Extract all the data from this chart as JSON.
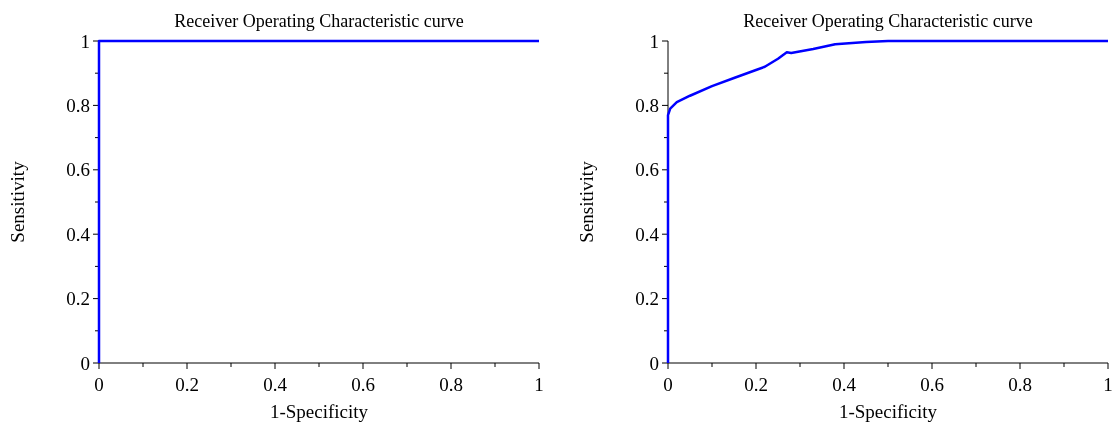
{
  "chart_data": [
    {
      "type": "line",
      "title": "Receiver Operating Characteristic curve",
      "xlabel": "1-Specificity",
      "ylabel": "Sensitivity",
      "series": [
        {
          "color": "#0000ff",
          "x": [
            0,
            0,
            0,
            0.25,
            0.5,
            0.75,
            1
          ],
          "values": [
            0,
            0.5,
            1,
            1,
            1,
            1,
            1
          ]
        }
      ],
      "xlim": [
        0,
        1
      ],
      "ylim": [
        0,
        1
      ],
      "xticks": [
        0,
        {
          "value": 0.1,
          "label": null
        },
        0.2,
        {
          "value": 0.3,
          "label": null
        },
        0.4,
        {
          "value": 0.5,
          "label": null
        },
        0.6,
        {
          "value": 0.7,
          "label": null
        },
        0.8,
        {
          "value": 0.9,
          "label": null
        },
        1
      ],
      "yticks": [
        0,
        {
          "value": 0.1,
          "label": null
        },
        0.2,
        {
          "value": 0.3,
          "label": null
        },
        0.4,
        {
          "value": 0.5,
          "label": null
        },
        0.6,
        {
          "value": 0.7,
          "label": null
        },
        0.8,
        {
          "value": 0.9,
          "label": null
        },
        1
      ],
      "grid": false
    },
    {
      "type": "line",
      "title": "Receiver Operating Characteristic curve",
      "xlabel": "1-Specificity",
      "ylabel": "Sensitivity",
      "series": [
        {
          "color": "#0000ff",
          "x": [
            0,
            0,
            0.005,
            0.02,
            0.05,
            0.1,
            0.15,
            0.2,
            0.22,
            0.25,
            0.27,
            0.28,
            0.33,
            0.38,
            0.45,
            0.5,
            1
          ],
          "values": [
            0,
            0.77,
            0.79,
            0.81,
            0.83,
            0.86,
            0.885,
            0.91,
            0.92,
            0.945,
            0.965,
            0.963,
            0.975,
            0.99,
            0.997,
            1,
            1
          ]
        }
      ],
      "xlim": [
        0,
        1
      ],
      "ylim": [
        0,
        1
      ],
      "xticks": [
        0,
        {
          "value": 0.1,
          "label": null
        },
        0.2,
        {
          "value": 0.3,
          "label": null
        },
        0.4,
        {
          "value": 0.5,
          "label": null
        },
        0.6,
        {
          "value": 0.7,
          "label": null
        },
        0.8,
        {
          "value": 0.9,
          "label": null
        },
        1
      ],
      "yticks": [
        0,
        {
          "value": 0.1,
          "label": null
        },
        0.2,
        {
          "value": 0.3,
          "label": null
        },
        0.4,
        {
          "value": 0.5,
          "label": null
        },
        0.6,
        {
          "value": 0.7,
          "label": null
        },
        0.8,
        {
          "value": 0.9,
          "label": null
        },
        1
      ],
      "grid": false
    }
  ]
}
